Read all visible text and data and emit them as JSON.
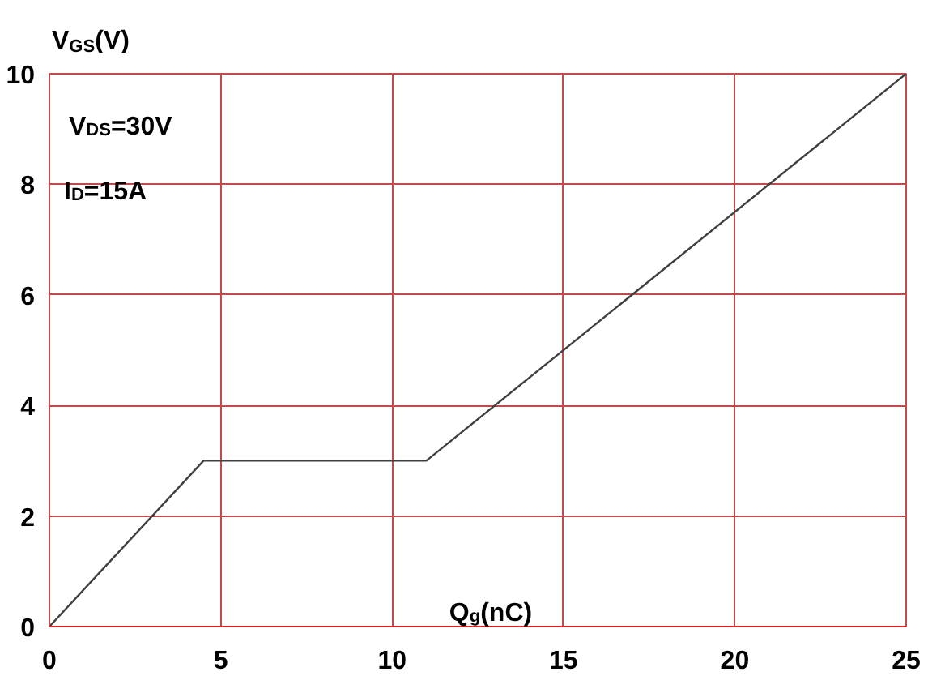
{
  "chart_data": {
    "type": "line",
    "x": [
      0,
      4.5,
      11,
      25
    ],
    "series": [
      {
        "color": "#404040",
        "values": [
          0,
          3,
          3,
          10
        ]
      }
    ],
    "xlim": [
      0,
      25
    ],
    "ylim": [
      0,
      10
    ],
    "xticks": [
      0,
      5,
      10,
      15,
      20,
      25
    ],
    "yticks": [
      0,
      2,
      4,
      6,
      8,
      10
    ],
    "xlabel": "Q$_{g}$(nC)",
    "ylabel": "V$_{GS}$(V)",
    "annotations": [
      "V$_{DS}$=30V",
      "I$_{D}$=15A"
    ],
    "grid": true,
    "line_style": "solid"
  }
}
